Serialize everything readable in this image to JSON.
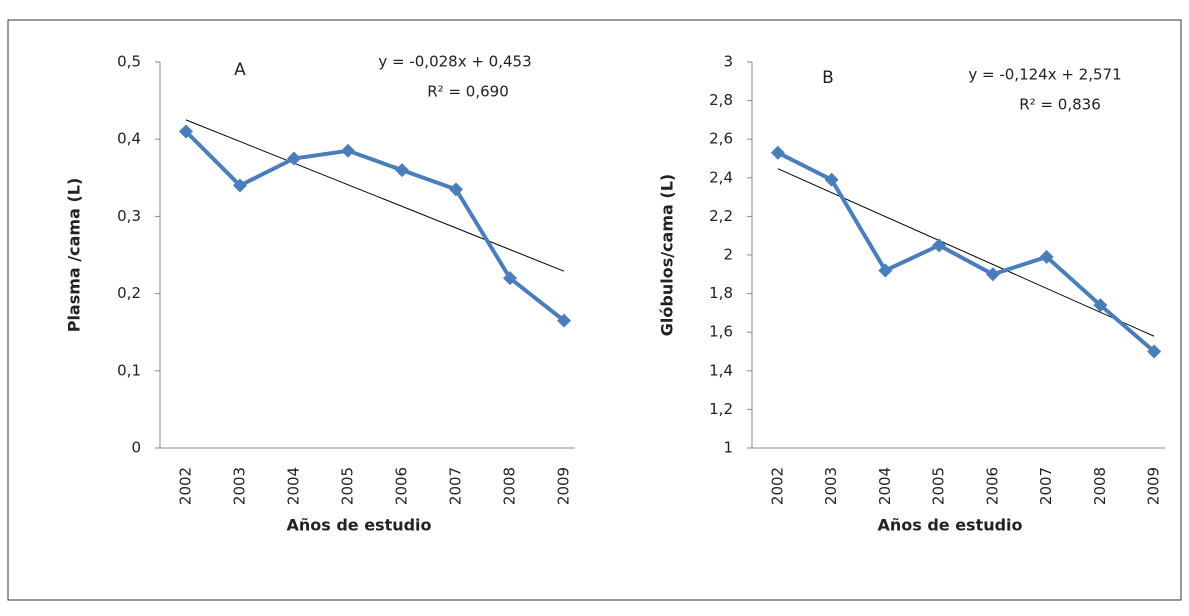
{
  "chart_data": [
    {
      "type": "line",
      "label": "A",
      "ylabel": "Plasma /cama (L)",
      "xlabel": "Años de estudio",
      "equation": "y = -0,028x + 0,453",
      "r2": "R² = 0,690",
      "categories": [
        "2002",
        "2003",
        "2004",
        "2005",
        "2006",
        "2007",
        "2008",
        "2009"
      ],
      "values": [
        0.41,
        0.34,
        0.375,
        0.385,
        0.36,
        0.335,
        0.22,
        0.165
      ],
      "color": "#4a7ebb",
      "trendline": {
        "slope": -0.028,
        "intercept": 0.453,
        "color": "#000000"
      },
      "ylim": [
        0,
        0.5
      ],
      "yticks": [
        0,
        {
          "value": 0.1,
          "label": "0,1"
        },
        {
          "value": 0.2,
          "label": "0,2"
        },
        {
          "value": 0.3,
          "label": "0,3"
        },
        {
          "value": 0.4,
          "label": "0,4"
        },
        {
          "value": 0.5,
          "label": "0,5"
        }
      ],
      "grid": false
    },
    {
      "type": "line",
      "label": "B",
      "ylabel": "Glóbulos/cama (L)",
      "xlabel": "Años de estudio",
      "equation": "y = -0,124x + 2,571",
      "r2": "R² = 0,836",
      "categories": [
        "2002",
        "2003",
        "2004",
        "2005",
        "2006",
        "2007",
        "2008",
        "2009"
      ],
      "values": [
        2.53,
        2.39,
        1.92,
        2.05,
        1.9,
        1.99,
        1.74,
        1.5
      ],
      "color": "#4a7ebb",
      "trendline": {
        "slope": -0.124,
        "intercept": 2.571,
        "color": "#000000"
      },
      "ylim": [
        1,
        3
      ],
      "yticks": [
        1,
        {
          "value": 1.2,
          "label": "1,2"
        },
        {
          "value": 1.4,
          "label": "1,4"
        },
        {
          "value": 1.6,
          "label": "1,6"
        },
        {
          "value": 1.8,
          "label": "1,8"
        },
        2,
        {
          "value": 2.2,
          "label": "2,2"
        },
        {
          "value": 2.4,
          "label": "2,4"
        },
        {
          "value": 2.6,
          "label": "2,6"
        },
        {
          "value": 2.8,
          "label": "2,8"
        },
        3
      ],
      "grid": false
    }
  ]
}
